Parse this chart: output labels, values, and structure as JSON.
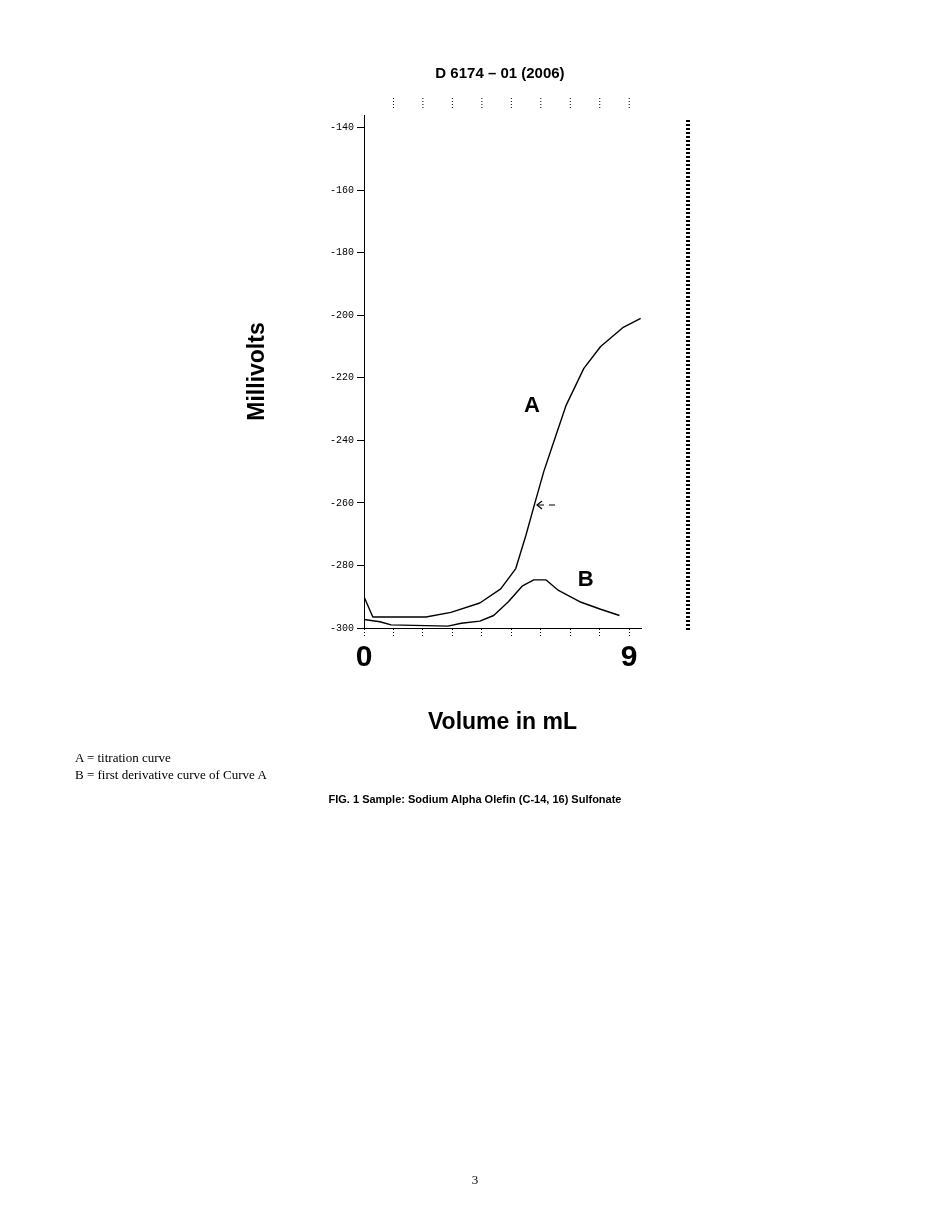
{
  "chart_data": {
    "type": "line",
    "title": "D 6174 – 01 (2006)",
    "xlabel": "Volume in mL",
    "ylabel": "Millivolts",
    "xlim": [
      0,
      9.4
    ],
    "ylim": [
      -300,
      -136
    ],
    "xticks": [
      {
        "value": 0,
        "label": "0"
      },
      {
        "value": 1,
        "label": null
      },
      {
        "value": 2,
        "label": null
      },
      {
        "value": 3,
        "label": null
      },
      {
        "value": 4,
        "label": null
      },
      {
        "value": 5,
        "label": null
      },
      {
        "value": 6,
        "label": null
      },
      {
        "value": 7,
        "label": null
      },
      {
        "value": 8,
        "label": null
      },
      {
        "value": 9,
        "label": "9"
      }
    ],
    "yticks": [
      -300,
      -280,
      -260,
      -240,
      -220,
      -200,
      -180,
      -160,
      -140
    ],
    "marker": "none",
    "line_style": "solid",
    "legend": false,
    "series": [
      {
        "name": "A",
        "color": "#000000",
        "x": [
          0,
          0.3,
          2.1,
          2.95,
          3.93,
          4.64,
          5.15,
          5.49,
          5.8,
          6.1,
          6.42,
          6.85,
          7.46,
          8.03,
          8.78,
          9.39
        ],
        "values": [
          -290,
          -296.5,
          -296.5,
          -295,
          -292,
          -287.5,
          -281,
          -270.5,
          -260,
          -250,
          -241,
          -229,
          -217,
          -210,
          -204,
          -201
        ]
      },
      {
        "name": "B",
        "color": "#000000",
        "x": [
          0,
          0.54,
          0.92,
          2.85,
          3.3,
          3.93,
          4.4,
          4.9,
          5.38,
          5.76,
          6.17,
          6.6,
          7.32,
          8.03,
          8.67
        ],
        "values": [
          -297.3,
          -298,
          -299,
          -299.4,
          -298.5,
          -297.8,
          -296,
          -291.6,
          -286.5,
          -284.6,
          -284.6,
          -288,
          -291.6,
          -294,
          -296
        ]
      }
    ],
    "annotations": [
      "A  =  titration curve",
      "B  =  first derivative curve of Curve A",
      "FIG. 1 Sample: Sodium Alpha Olefin (C-14, 16) Sulfonate",
      "3"
    ]
  }
}
